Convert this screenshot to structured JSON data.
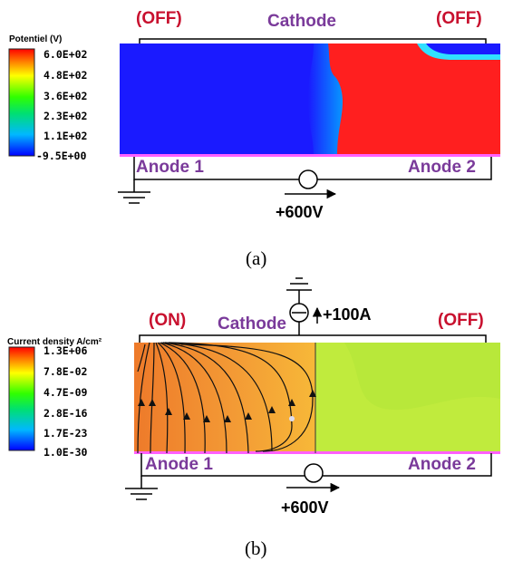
{
  "panel_a": {
    "legend_title": "Potentiel (V)",
    "legend_ticks": [
      "6.0E+02",
      "4.8E+02",
      "3.6E+02",
      "2.3E+02",
      "1.1E+02",
      "-9.5E+00"
    ],
    "label_off_left": "(OFF)",
    "label_cathode": "Cathode",
    "label_off_right": "(OFF)",
    "label_anode1": "Anode 1",
    "label_anode2": "Anode 2",
    "label_voltage": "+600V",
    "caption": "(a)"
  },
  "panel_b": {
    "legend_title": "Current density A/cm²",
    "legend_ticks": [
      "1.3E+06",
      "7.8E-02",
      "4.7E-09",
      "2.8E-16",
      "1.7E-23",
      "1.0E-30"
    ],
    "label_on_left": "(ON)",
    "label_cathode": "Cathode",
    "label_off_right": "(OFF)",
    "label_current": "+100A",
    "label_anode1": "Anode 1",
    "label_anode2": "Anode 2",
    "label_voltage": "+600V",
    "caption": "(b)"
  },
  "colors": {
    "label_red": "#c8102e",
    "label_purple": "#7a3a9a",
    "potential_low": "#1a1aff",
    "potential_high": "#ff1f1f",
    "current_high": "#f08a30",
    "current_low": "#b8e83a"
  }
}
